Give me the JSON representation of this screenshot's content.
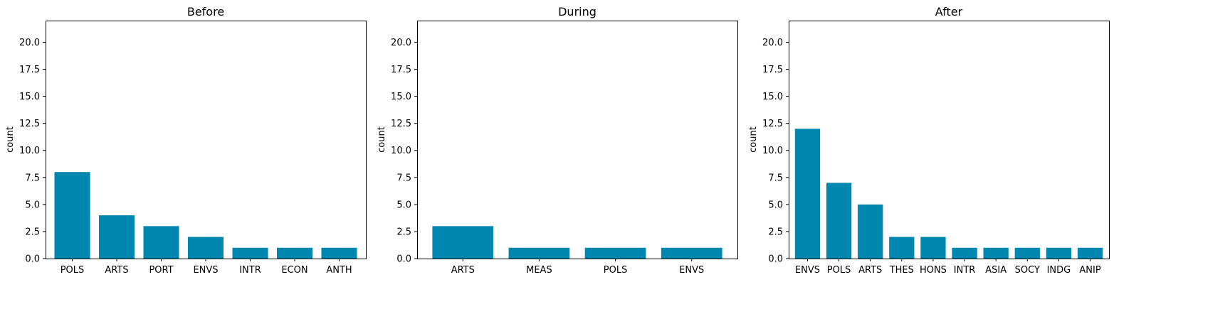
{
  "colors": {
    "bar": "#0087b0",
    "axis": "#000000",
    "background": "#ffffff"
  },
  "chart_data": [
    {
      "type": "bar",
      "title": "Before",
      "ylabel": "count",
      "xlabel": "",
      "ylim": [
        0,
        22
      ],
      "yticks": [
        "0.0",
        "2.5",
        "5.0",
        "7.5",
        "10.0",
        "12.5",
        "15.0",
        "17.5",
        "20.0"
      ],
      "grid": false,
      "categories": [
        "POLS",
        "ARTS",
        "PORT",
        "ENVS",
        "INTR",
        "ECON",
        "ANTH"
      ],
      "values": [
        8,
        4,
        3,
        2,
        1,
        1,
        1
      ]
    },
    {
      "type": "bar",
      "title": "During",
      "ylabel": "count",
      "xlabel": "",
      "ylim": [
        0,
        22
      ],
      "yticks": [
        "0.0",
        "2.5",
        "5.0",
        "7.5",
        "10.0",
        "12.5",
        "15.0",
        "17.5",
        "20.0"
      ],
      "grid": false,
      "categories": [
        "ARTS",
        "MEAS",
        "POLS",
        "ENVS"
      ],
      "values": [
        3,
        1,
        1,
        1
      ]
    },
    {
      "type": "bar",
      "title": "After",
      "ylabel": "count",
      "xlabel": "",
      "ylim": [
        0,
        22
      ],
      "yticks": [
        "0.0",
        "2.5",
        "5.0",
        "7.5",
        "10.0",
        "12.5",
        "15.0",
        "17.5",
        "20.0"
      ],
      "grid": false,
      "categories": [
        "ENVS",
        "POLS",
        "ARTS",
        "THES",
        "HONS",
        "INTR",
        "ASIA",
        "SOCY",
        "INDG",
        "ANIP"
      ],
      "values": [
        12,
        7,
        5,
        2,
        2,
        1,
        1,
        1,
        1,
        1
      ]
    }
  ]
}
